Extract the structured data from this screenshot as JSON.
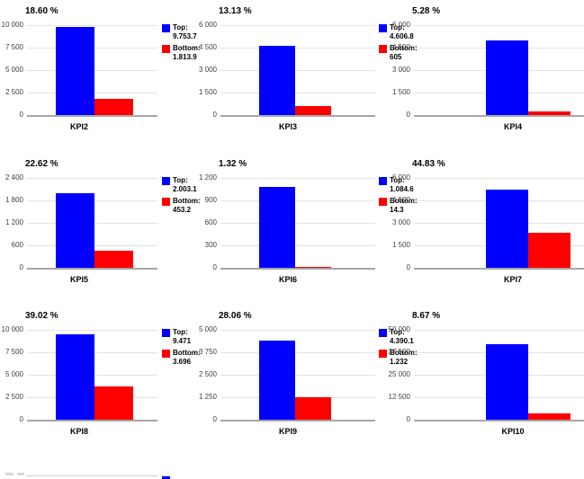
{
  "page": {
    "background": "#ffffff"
  },
  "colors": {
    "top_bar": "#0000ff",
    "bottom_bar": "#ff0000",
    "grid_line": "#e3e3e3",
    "axis_line": "#a6a6a6",
    "title_text": "#000000",
    "tick_text": "#404040"
  },
  "legend_labels": {
    "top": "Top:",
    "bottom": "Bottom:"
  },
  "chart_data": [
    {
      "type": "bar",
      "title": "18.60 %",
      "xlabel": "KPI2",
      "categories": [
        "KPI2"
      ],
      "series": [
        {
          "name": "Top",
          "value": 9753.7
        },
        {
          "name": "Bottom",
          "value": 1813.9
        }
      ],
      "ylim": [
        0,
        10000
      ],
      "yticks": [
        "10 000",
        "7 500",
        "5 000",
        "2 500",
        "0"
      ],
      "grid": true,
      "legend": {
        "position": "right",
        "top_value": "9.753.7",
        "bottom_value": "1.813.9"
      }
    },
    {
      "type": "bar",
      "title": "13.13 %",
      "xlabel": "KPI3",
      "categories": [
        "KPI3"
      ],
      "series": [
        {
          "name": "Top",
          "value": 4606.8
        },
        {
          "name": "Bottom",
          "value": 605
        }
      ],
      "ylim": [
        0,
        6000
      ],
      "yticks": [
        "6 000",
        "4 500",
        "3 000",
        "1 500",
        "0"
      ],
      "grid": true,
      "legend": {
        "position": "right",
        "top_value": "4.606.8",
        "bottom_value": "605"
      }
    },
    {
      "type": "bar",
      "title": "5.28 %",
      "xlabel": "KPI4",
      "categories": [
        "KPI4"
      ],
      "series": [
        {
          "name": "Top",
          "value": 4960
        },
        {
          "name": "Bottom",
          "value": 262
        }
      ],
      "ylim": [
        0,
        6000
      ],
      "yticks": [
        "6 000",
        "4 500",
        "3 000",
        "1 500",
        "0"
      ],
      "grid": true,
      "legend": null
    },
    {
      "type": "bar",
      "title": "22.62 %",
      "xlabel": "KPI5",
      "categories": [
        "KPI5"
      ],
      "series": [
        {
          "name": "Top",
          "value": 2003.1
        },
        {
          "name": "Bottom",
          "value": 453.2
        }
      ],
      "ylim": [
        0,
        2400
      ],
      "yticks": [
        "2 400",
        "1 800",
        "1 200",
        "600",
        "0"
      ],
      "grid": true,
      "legend": {
        "position": "right",
        "top_value": "2.003.1",
        "bottom_value": "453.2"
      }
    },
    {
      "type": "bar",
      "title": "1.32 %",
      "xlabel": "KPI6",
      "categories": [
        "KPI6"
      ],
      "series": [
        {
          "name": "Top",
          "value": 1084.6
        },
        {
          "name": "Bottom",
          "value": 14.3
        }
      ],
      "ylim": [
        0,
        1200
      ],
      "yticks": [
        "1 200",
        "900",
        "600",
        "300",
        "0"
      ],
      "grid": true,
      "legend": {
        "position": "right",
        "top_value": "1.084.6",
        "bottom_value": "14.3"
      }
    },
    {
      "type": "bar",
      "title": "44.83 %",
      "xlabel": "KPI7",
      "categories": [
        "KPI7"
      ],
      "series": [
        {
          "name": "Top",
          "value": 5240
        },
        {
          "name": "Bottom",
          "value": 2349
        }
      ],
      "ylim": [
        0,
        6000
      ],
      "yticks": [
        "6 000",
        "4 500",
        "3 000",
        "1 500",
        "0"
      ],
      "grid": true,
      "legend": null
    },
    {
      "type": "bar",
      "title": "39.02 %",
      "xlabel": "KPI8",
      "categories": [
        "KPI8"
      ],
      "series": [
        {
          "name": "Top",
          "value": 9471
        },
        {
          "name": "Bottom",
          "value": 3696
        }
      ],
      "ylim": [
        0,
        10000
      ],
      "yticks": [
        "10 000",
        "7 500",
        "5 000",
        "2 500",
        "0"
      ],
      "grid": true,
      "legend": {
        "position": "right",
        "top_value": "9.471",
        "bottom_value": "3.696"
      }
    },
    {
      "type": "bar",
      "title": "28.06 %",
      "xlabel": "KPI9",
      "categories": [
        "KPI9"
      ],
      "series": [
        {
          "name": "Top",
          "value": 4390.1
        },
        {
          "name": "Bottom",
          "value": 1232
        }
      ],
      "ylim": [
        0,
        5000
      ],
      "yticks": [
        "5 000",
        "3 750",
        "2 500",
        "1 250",
        "0"
      ],
      "grid": true,
      "legend": {
        "position": "right",
        "top_value": "4.390.1",
        "bottom_value": "1.232"
      }
    },
    {
      "type": "bar",
      "title": "8.67 %",
      "xlabel": "KPI10",
      "categories": [
        "KPI10"
      ],
      "series": [
        {
          "name": "Top",
          "value": 42000
        },
        {
          "name": "Bottom",
          "value": 3641
        }
      ],
      "ylim": [
        0,
        50000
      ],
      "yticks": [
        "50 000",
        "37 500",
        "25 000",
        "12 500",
        "0"
      ],
      "grid": true,
      "legend": null
    }
  ],
  "partial_chart": {
    "visible": true
  }
}
